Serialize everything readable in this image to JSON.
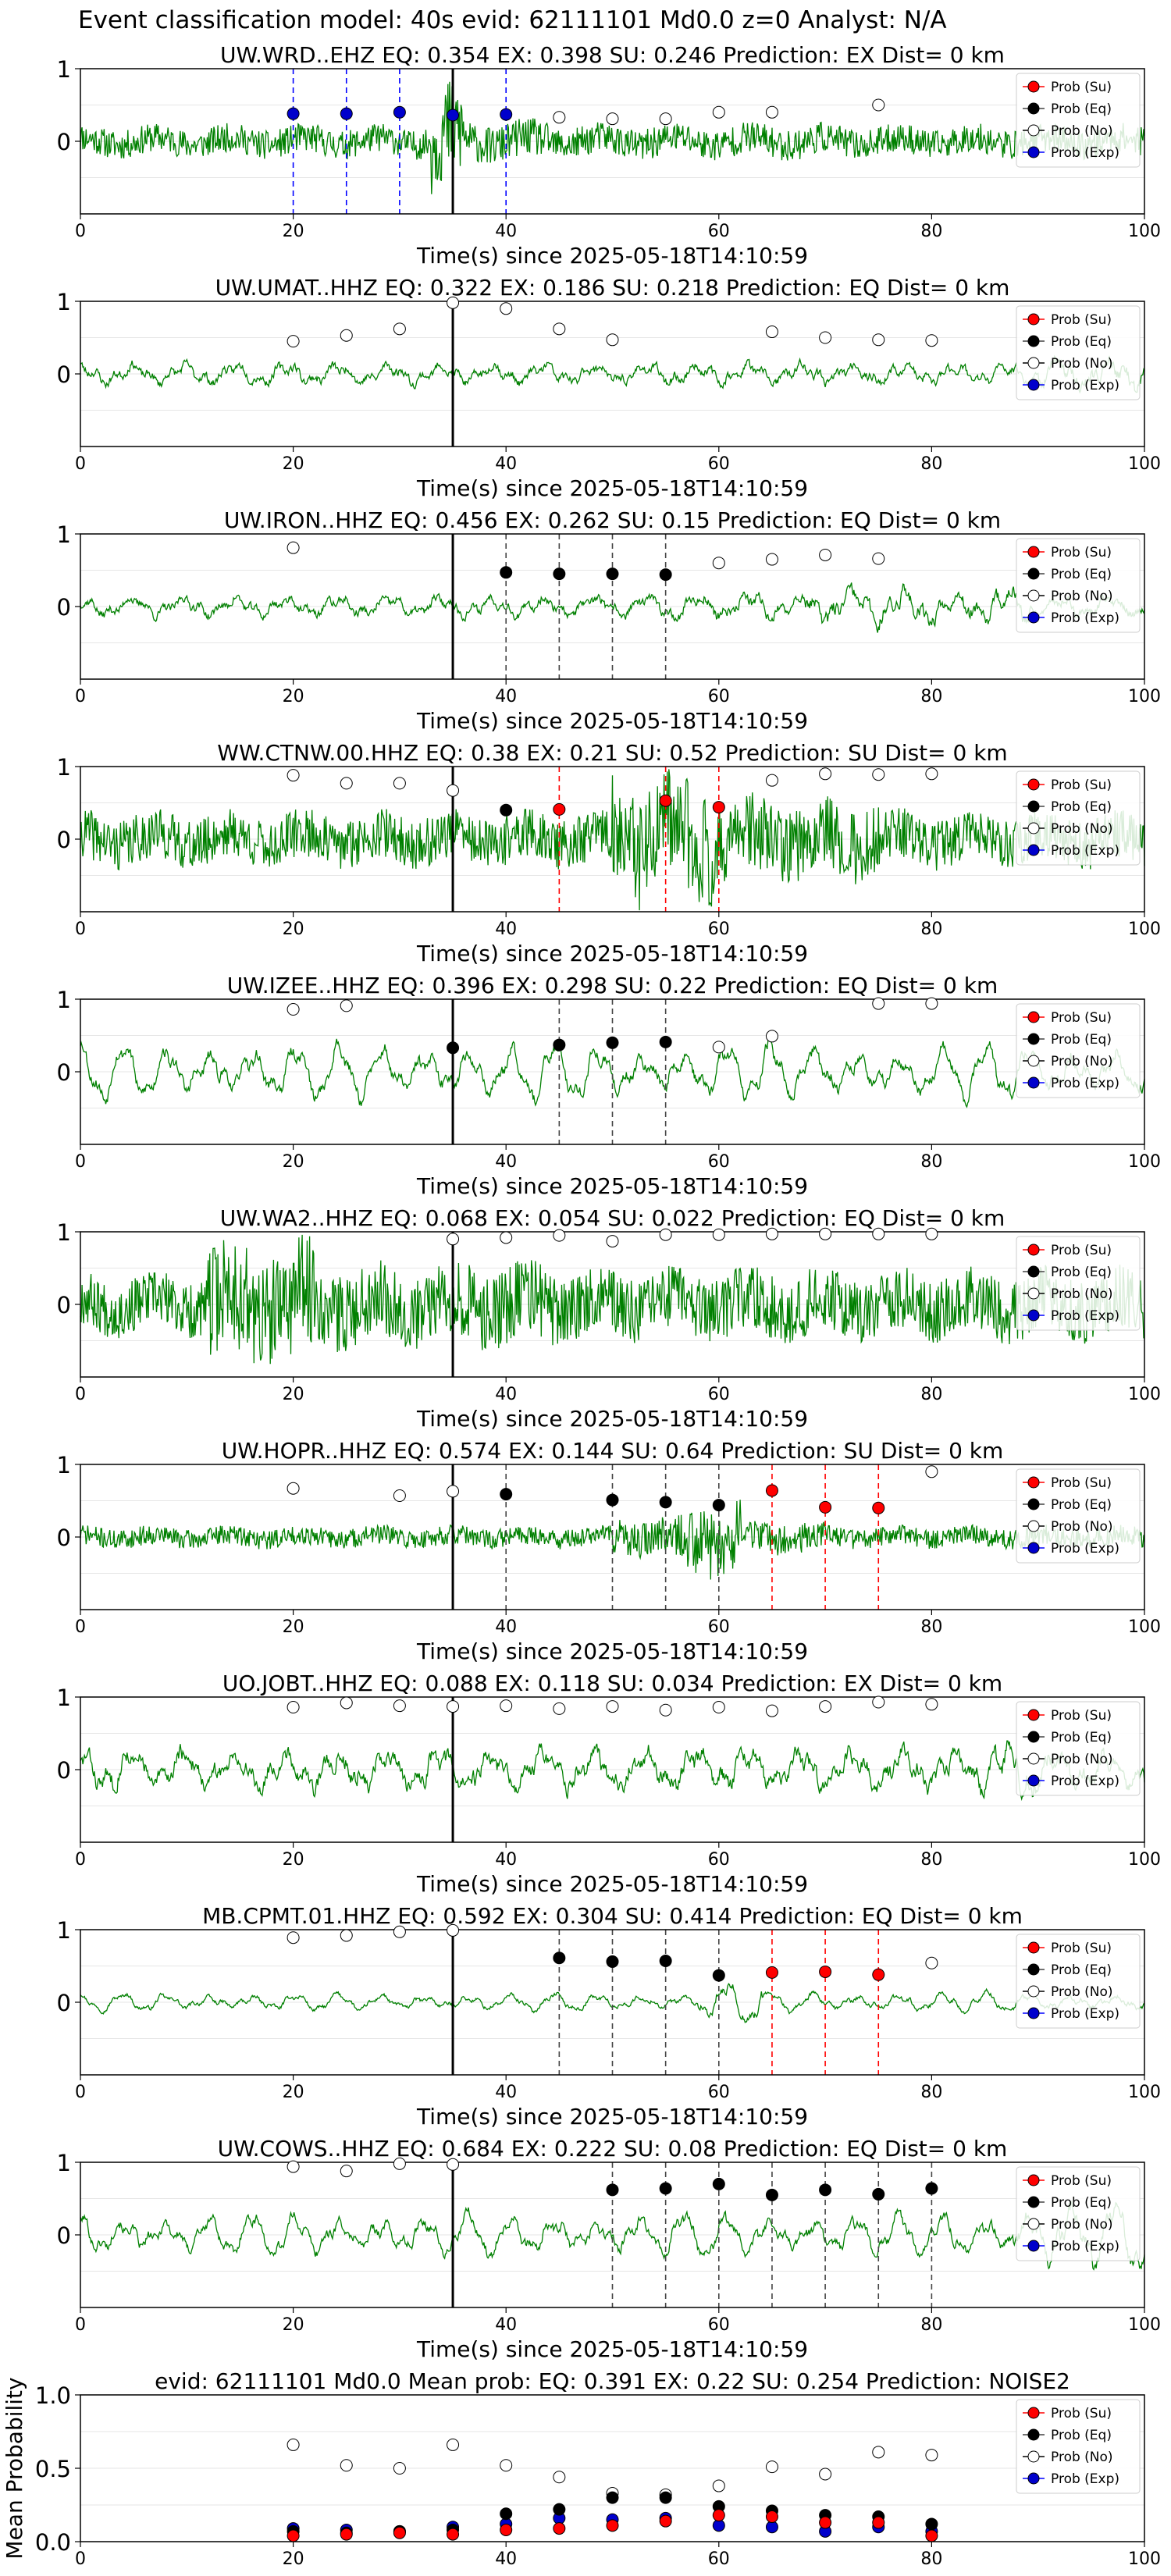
{
  "figure": {
    "suptitle": "Event classification model: 40s evid: 62111101 Md0.0 z=0 Analyst: N/A"
  },
  "colors": {
    "waveform": "#008000",
    "su": "#ff0000",
    "eq": "#000000",
    "no": "#ffffff",
    "exp": "#0000cc",
    "su_line": "#ff0000",
    "eq_line": "#444444",
    "exp_line": "#0000ff",
    "pick_line": "#000000"
  },
  "legend_labels": [
    "Prob (Su)",
    "Prob (Eq)",
    "Prob (No)",
    "Prob (Exp)"
  ],
  "chart_data": [
    {
      "type": "scatter",
      "title": "UW.WRD..EHZ   EQ: 0.354  EX: 0.398  SU: 0.246   Prediction: EX    Dist= 0 km",
      "xlabel": "Time(s) since 2025-05-18T14:10:59",
      "xlim": [
        0,
        100
      ],
      "ylim": [
        -1,
        1
      ],
      "xticks": [
        "0",
        "20",
        "40",
        "60",
        "80",
        "100"
      ],
      "yticks": [
        "0",
        "1"
      ],
      "legend": "top-right",
      "grid": "horizontal",
      "wave": {
        "amp": 0.22,
        "style": "noise",
        "seed": 11,
        "bursts": [
          [
            33,
            36,
            3.5
          ],
          [
            36,
            44,
            1.3
          ],
          [
            44,
            70,
            1.1
          ]
        ]
      },
      "pick": 35,
      "series": [
        {
          "name": "Prob (No)",
          "x": [
            45,
            50,
            55,
            60,
            65,
            75
          ],
          "y": [
            0.33,
            0.31,
            0.31,
            0.4,
            0.4,
            0.5
          ]
        },
        {
          "name": "Prob (Exp)",
          "x": [
            20,
            25,
            30,
            35,
            40
          ],
          "y": [
            0.38,
            0.38,
            0.4,
            0.36,
            0.37
          ]
        }
      ],
      "vlines": [
        {
          "x": 20,
          "kind": "exp"
        },
        {
          "x": 25,
          "kind": "exp"
        },
        {
          "x": 30,
          "kind": "exp"
        },
        {
          "x": 35,
          "kind": "exp"
        },
        {
          "x": 40,
          "kind": "exp"
        }
      ]
    },
    {
      "type": "scatter",
      "title": "UW.UMAT..HHZ   EQ: 0.322  EX: 0.186  SU: 0.218   Prediction: EQ    Dist= 0 km",
      "xlabel": "Time(s) since 2025-05-18T14:10:59",
      "xlim": [
        0,
        100
      ],
      "ylim": [
        -1,
        1
      ],
      "xticks": [
        "0",
        "20",
        "40",
        "60",
        "80",
        "100"
      ],
      "yticks": [
        "0",
        "1"
      ],
      "legend": "top-right",
      "grid": "horizontal",
      "wave": {
        "amp": 0.2,
        "style": "mixed",
        "seed": 23,
        "bursts": [
          [
            90,
            100,
            1.5
          ]
        ]
      },
      "pick": 35,
      "series": [
        {
          "name": "Prob (No)",
          "x": [
            20,
            25,
            30,
            35,
            40,
            45,
            50,
            65,
            70,
            75,
            80
          ],
          "y": [
            0.45,
            0.53,
            0.62,
            0.98,
            0.9,
            0.62,
            0.47,
            0.58,
            0.5,
            0.47,
            0.46
          ]
        }
      ],
      "vlines": []
    },
    {
      "type": "scatter",
      "title": "UW.IRON..HHZ   EQ: 0.456  EX: 0.262  SU: 0.15   Prediction: EQ    Dist= 0 km",
      "xlabel": "Time(s) since 2025-05-18T14:10:59",
      "xlim": [
        0,
        100
      ],
      "ylim": [
        -1,
        1
      ],
      "xticks": [
        "0",
        "20",
        "40",
        "60",
        "80",
        "100"
      ],
      "yticks": [
        "0",
        "1"
      ],
      "legend": "top-right",
      "grid": "horizontal",
      "wave": {
        "amp": 0.2,
        "style": "mixed",
        "seed": 37,
        "bursts": [
          [
            55,
            68,
            1.3
          ],
          [
            68,
            90,
            1.7
          ]
        ]
      },
      "pick": 35,
      "series": [
        {
          "name": "Prob (Eq)",
          "x": [
            40,
            45,
            50,
            55
          ],
          "y": [
            0.47,
            0.45,
            0.45,
            0.44
          ]
        },
        {
          "name": "Prob (No)",
          "x": [
            20,
            60,
            65,
            70,
            75
          ],
          "y": [
            0.81,
            0.6,
            0.65,
            0.71,
            0.66
          ]
        }
      ],
      "vlines": [
        {
          "x": 40,
          "kind": "eq"
        },
        {
          "x": 45,
          "kind": "eq"
        },
        {
          "x": 50,
          "kind": "eq"
        },
        {
          "x": 55,
          "kind": "eq"
        }
      ]
    },
    {
      "type": "scatter",
      "title": "WW.CTNW.00.HHZ   EQ: 0.38  EX: 0.21  SU: 0.52   Prediction: SU    Dist= 0 km",
      "xlabel": "Time(s) since 2025-05-18T14:10:59",
      "xlim": [
        0,
        100
      ],
      "ylim": [
        -1,
        1
      ],
      "xticks": [
        "0",
        "20",
        "40",
        "60",
        "80",
        "100"
      ],
      "yticks": [
        "0",
        "1"
      ],
      "legend": "top-right",
      "grid": "horizontal",
      "wave": {
        "amp": 0.38,
        "style": "noise",
        "seed": 41,
        "bursts": [
          [
            50,
            60,
            2.3
          ],
          [
            60,
            75,
            1.5
          ]
        ]
      },
      "pick": 35,
      "series": [
        {
          "name": "Prob (Su)",
          "x": [
            45,
            55,
            60
          ],
          "y": [
            0.41,
            0.53,
            0.44
          ]
        },
        {
          "name": "Prob (Eq)",
          "x": [
            40
          ],
          "y": [
            0.4
          ]
        },
        {
          "name": "Prob (No)",
          "x": [
            20,
            25,
            30,
            35,
            65,
            70,
            75,
            80
          ],
          "y": [
            0.88,
            0.77,
            0.77,
            0.67,
            0.81,
            0.9,
            0.89,
            0.9
          ]
        }
      ],
      "vlines": [
        {
          "x": 45,
          "kind": "su"
        },
        {
          "x": 55,
          "kind": "su"
        },
        {
          "x": 60,
          "kind": "su"
        }
      ]
    },
    {
      "type": "scatter",
      "title": "UW.IZEE..HHZ   EQ: 0.396  EX: 0.298  SU: 0.22   Prediction: EQ    Dist= 0 km",
      "xlabel": "Time(s) since 2025-05-18T14:10:59",
      "xlim": [
        0,
        100
      ],
      "ylim": [
        -1,
        1
      ],
      "xticks": [
        "0",
        "20",
        "40",
        "60",
        "80",
        "100"
      ],
      "yticks": [
        "0",
        "1"
      ],
      "legend": "top-right",
      "grid": "horizontal",
      "wave": {
        "amp": 0.45,
        "style": "wavy",
        "seed": 53,
        "bursts": [
          [
            80,
            100,
            0.9
          ]
        ]
      },
      "pick": 35,
      "series": [
        {
          "name": "Prob (Eq)",
          "x": [
            35,
            45,
            50,
            55
          ],
          "y": [
            0.33,
            0.37,
            0.4,
            0.41
          ]
        },
        {
          "name": "Prob (No)",
          "x": [
            20,
            25,
            60,
            65,
            75,
            80
          ],
          "y": [
            0.86,
            0.91,
            0.34,
            0.49,
            0.94,
            0.94
          ]
        }
      ],
      "vlines": [
        {
          "x": 45,
          "kind": "eq"
        },
        {
          "x": 50,
          "kind": "eq"
        },
        {
          "x": 55,
          "kind": "eq"
        }
      ]
    },
    {
      "type": "scatter",
      "title": "UW.WA2..HHZ   EQ: 0.068  EX: 0.054  SU: 0.022   Prediction: EQ    Dist= 0 km",
      "xlabel": "Time(s) since 2025-05-18T14:10:59",
      "xlim": [
        0,
        100
      ],
      "ylim": [
        -1,
        1
      ],
      "xticks": [
        "0",
        "20",
        "40",
        "60",
        "80",
        "100"
      ],
      "yticks": [
        "0",
        "1"
      ],
      "legend": "top-right",
      "grid": "horizontal",
      "wave": {
        "amp": 0.42,
        "style": "noise",
        "seed": 67,
        "bursts": [
          [
            12,
            22,
            2.1
          ],
          [
            22,
            45,
            1.4
          ],
          [
            45,
            100,
            1.15
          ]
        ]
      },
      "pick": 35,
      "series": [
        {
          "name": "Prob (No)",
          "x": [
            35,
            40,
            45,
            50,
            55,
            60,
            65,
            70,
            75,
            80
          ],
          "y": [
            0.9,
            0.92,
            0.95,
            0.87,
            0.96,
            0.96,
            0.97,
            0.97,
            0.97,
            0.97
          ]
        }
      ],
      "vlines": []
    },
    {
      "type": "scatter",
      "title": "UW.HOPR..HHZ   EQ: 0.574  EX: 0.144  SU: 0.64   Prediction: SU    Dist= 0 km",
      "xlabel": "Time(s) since 2025-05-18T14:10:59",
      "xlim": [
        0,
        100
      ],
      "ylim": [
        -1,
        1
      ],
      "xticks": [
        "0",
        "20",
        "40",
        "60",
        "80",
        "100"
      ],
      "yticks": [
        "0",
        "1"
      ],
      "legend": "top-right",
      "grid": "horizontal",
      "wave": {
        "amp": 0.15,
        "style": "noise",
        "seed": 71,
        "bursts": [
          [
            50,
            56,
            1.8
          ],
          [
            56,
            62,
            3.5
          ],
          [
            62,
            70,
            1.6
          ]
        ]
      },
      "pick": 35,
      "series": [
        {
          "name": "Prob (Su)",
          "x": [
            65,
            70,
            75
          ],
          "y": [
            0.64,
            0.41,
            0.4
          ]
        },
        {
          "name": "Prob (Eq)",
          "x": [
            40,
            50,
            55,
            60
          ],
          "y": [
            0.59,
            0.51,
            0.48,
            0.44
          ]
        },
        {
          "name": "Prob (No)",
          "x": [
            20,
            30,
            35,
            80
          ],
          "y": [
            0.67,
            0.57,
            0.63,
            0.9
          ]
        }
      ],
      "vlines": [
        {
          "x": 40,
          "kind": "eq"
        },
        {
          "x": 50,
          "kind": "eq"
        },
        {
          "x": 55,
          "kind": "eq"
        },
        {
          "x": 60,
          "kind": "eq"
        },
        {
          "x": 65,
          "kind": "su"
        },
        {
          "x": 70,
          "kind": "su"
        },
        {
          "x": 75,
          "kind": "su"
        }
      ]
    },
    {
      "type": "scatter",
      "title": "UO.JOBT..HHZ   EQ: 0.088  EX: 0.118  SU: 0.034   Prediction: EX    Dist= 0 km",
      "xlabel": "Time(s) since 2025-05-18T14:10:59",
      "xlim": [
        0,
        100
      ],
      "ylim": [
        -1,
        1
      ],
      "xticks": [
        "0",
        "20",
        "40",
        "60",
        "80",
        "100"
      ],
      "yticks": [
        "0",
        "1"
      ],
      "legend": "top-right",
      "grid": "horizontal",
      "wave": {
        "amp": 0.38,
        "style": "mixed",
        "seed": 83,
        "bursts": [
          [
            84,
            90,
            1.4
          ]
        ]
      },
      "pick": 35,
      "series": [
        {
          "name": "Prob (No)",
          "x": [
            20,
            25,
            30,
            35,
            40,
            45,
            50,
            55,
            60,
            65,
            70,
            75,
            80
          ],
          "y": [
            0.86,
            0.92,
            0.88,
            0.87,
            0.88,
            0.84,
            0.87,
            0.82,
            0.86,
            0.81,
            0.87,
            0.93,
            0.9
          ]
        }
      ],
      "vlines": []
    },
    {
      "type": "scatter",
      "title": "MB.CPMT.01.HHZ   EQ: 0.592  EX: 0.304  SU: 0.414   Prediction: EQ    Dist= 0 km",
      "xlabel": "Time(s) since 2025-05-18T14:10:59",
      "xlim": [
        0,
        100
      ],
      "ylim": [
        -1,
        1
      ],
      "xticks": [
        "0",
        "20",
        "40",
        "60",
        "80",
        "100"
      ],
      "yticks": [
        "0",
        "1"
      ],
      "legend": "top-right",
      "grid": "horizontal",
      "wave": {
        "amp": 0.14,
        "style": "wavy",
        "seed": 97,
        "bursts": [
          [
            58,
            64,
            2.4
          ],
          [
            64,
            100,
            1.2
          ]
        ]
      },
      "pick": 35,
      "series": [
        {
          "name": "Prob (Su)",
          "x": [
            65,
            70,
            75
          ],
          "y": [
            0.41,
            0.42,
            0.38
          ]
        },
        {
          "name": "Prob (Eq)",
          "x": [
            45,
            50,
            55,
            60
          ],
          "y": [
            0.61,
            0.56,
            0.57,
            0.37
          ]
        },
        {
          "name": "Prob (No)",
          "x": [
            20,
            25,
            30,
            35,
            80
          ],
          "y": [
            0.89,
            0.92,
            0.97,
            0.99,
            0.54
          ]
        }
      ],
      "vlines": [
        {
          "x": 45,
          "kind": "eq"
        },
        {
          "x": 50,
          "kind": "eq"
        },
        {
          "x": 55,
          "kind": "eq"
        },
        {
          "x": 60,
          "kind": "eq"
        },
        {
          "x": 65,
          "kind": "su"
        },
        {
          "x": 70,
          "kind": "su"
        },
        {
          "x": 75,
          "kind": "su"
        }
      ]
    },
    {
      "type": "scatter",
      "title": "UW.COWS..HHZ   EQ: 0.684  EX: 0.222  SU: 0.08   Prediction: EQ    Dist= 0 km",
      "xlabel": "Time(s) since 2025-05-18T14:10:59",
      "xlim": [
        0,
        100
      ],
      "ylim": [
        -1,
        1
      ],
      "xticks": [
        "0",
        "20",
        "40",
        "60",
        "80",
        "100"
      ],
      "yticks": [
        "0",
        "1"
      ],
      "legend": "top-right",
      "grid": "horizontal",
      "wave": {
        "amp": 0.35,
        "style": "wavy",
        "seed": 101,
        "bursts": [
          [
            88,
            100,
            1.6
          ]
        ]
      },
      "pick": 35,
      "series": [
        {
          "name": "Prob (Eq)",
          "x": [
            50,
            55,
            60,
            65,
            70,
            75,
            80
          ],
          "y": [
            0.62,
            0.64,
            0.7,
            0.55,
            0.62,
            0.56,
            0.64
          ]
        },
        {
          "name": "Prob (No)",
          "x": [
            20,
            25,
            30,
            35
          ],
          "y": [
            0.94,
            0.88,
            0.98,
            0.97
          ]
        }
      ],
      "vlines": [
        {
          "x": 50,
          "kind": "eq"
        },
        {
          "x": 55,
          "kind": "eq"
        },
        {
          "x": 60,
          "kind": "eq"
        },
        {
          "x": 65,
          "kind": "eq"
        },
        {
          "x": 70,
          "kind": "eq"
        },
        {
          "x": 75,
          "kind": "eq"
        },
        {
          "x": 80,
          "kind": "eq"
        }
      ]
    },
    {
      "type": "scatter",
      "title": "evid: 62111101  Md0.0   Mean prob:   EQ: 0.391  EX: 0.22  SU: 0.254   Prediction: NOISE2",
      "xlabel": "",
      "ylabel": "Mean Probability",
      "xlim": [
        0,
        100
      ],
      "ylim": [
        0,
        1
      ],
      "xticks": [
        "0",
        "20",
        "40",
        "60",
        "80",
        "100"
      ],
      "yticks": [
        "0.0",
        "0.5",
        "1.0"
      ],
      "legend": "top-right",
      "grid": "horizontal",
      "pick": null,
      "series": [
        {
          "name": "Prob (No)",
          "x": [
            20,
            25,
            30,
            35,
            40,
            45,
            50,
            55,
            60,
            65,
            70,
            75,
            80
          ],
          "y": [
            0.66,
            0.52,
            0.5,
            0.66,
            0.52,
            0.44,
            0.33,
            0.32,
            0.38,
            0.51,
            0.46,
            0.61,
            0.59
          ]
        },
        {
          "name": "Prob (Exp)",
          "x": [
            20,
            25,
            30,
            35,
            40,
            45,
            50,
            55,
            60,
            65,
            70,
            75,
            80
          ],
          "y": [
            0.09,
            0.08,
            0.07,
            0.1,
            0.12,
            0.16,
            0.15,
            0.16,
            0.11,
            0.1,
            0.07,
            0.1,
            0.07
          ]
        },
        {
          "name": "Prob (Eq)",
          "x": [
            20,
            25,
            30,
            35,
            40,
            45,
            50,
            55,
            60,
            65,
            70,
            75,
            80
          ],
          "y": [
            0.07,
            0.06,
            0.07,
            0.08,
            0.19,
            0.22,
            0.3,
            0.3,
            0.24,
            0.21,
            0.18,
            0.17,
            0.12
          ]
        },
        {
          "name": "Prob (Su)",
          "x": [
            20,
            25,
            30,
            35,
            40,
            45,
            50,
            55,
            60,
            65,
            70,
            75,
            80
          ],
          "y": [
            0.04,
            0.05,
            0.06,
            0.05,
            0.08,
            0.09,
            0.11,
            0.14,
            0.18,
            0.17,
            0.13,
            0.13,
            0.04
          ]
        }
      ],
      "vlines": []
    }
  ]
}
